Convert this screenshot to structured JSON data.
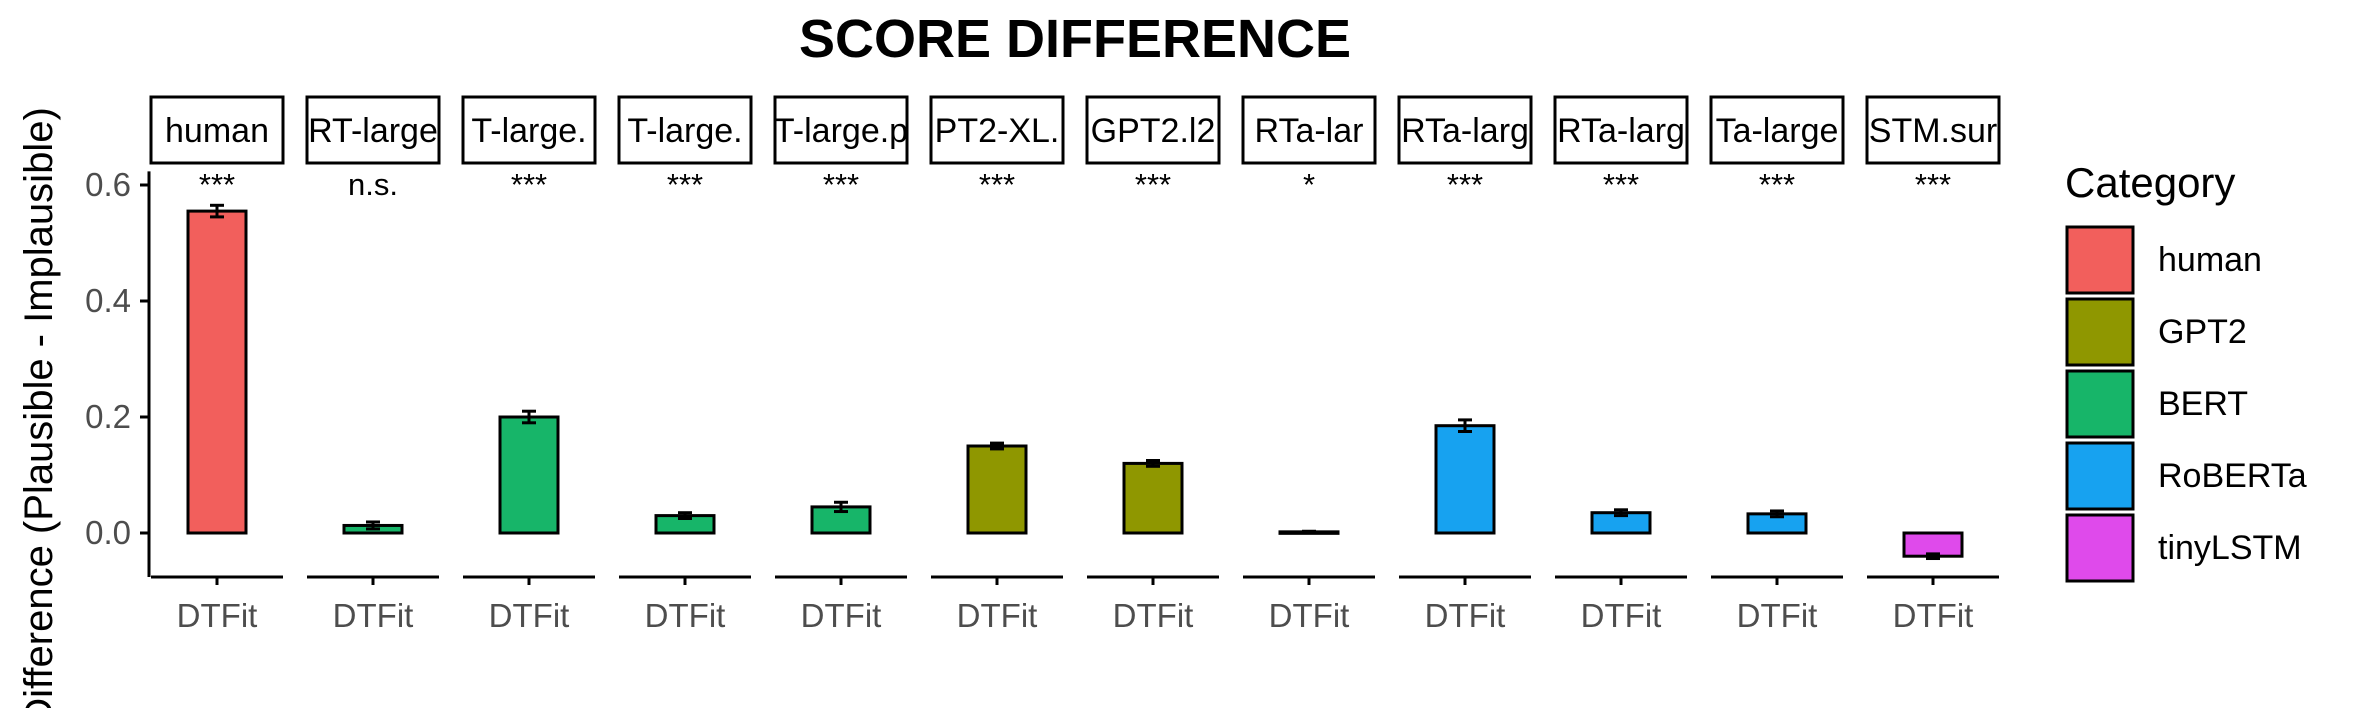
{
  "chart_data": {
    "type": "bar",
    "title": "SCORE DIFFERENCE",
    "ylabel": "Difference (Plausible - Implausible)",
    "xlabel": "",
    "ylim": [
      -0.07,
      0.62
    ],
    "y_ticks": [
      0.0,
      0.2,
      0.4,
      0.6
    ],
    "y_tick_labels": [
      "0.0",
      "0.2",
      "0.4",
      "0.6"
    ],
    "grid": false,
    "facet_category": "DTFit",
    "facets": [
      {
        "strip": "human",
        "category": "human",
        "value": 0.555,
        "error": 0.01,
        "significance": "***"
      },
      {
        "strip": "RT-large",
        "category": "BERT",
        "value": 0.013,
        "error": 0.006,
        "significance": "n.s."
      },
      {
        "strip": "T-large.",
        "category": "BERT",
        "value": 0.2,
        "error": 0.01,
        "significance": "***"
      },
      {
        "strip": "T-large.",
        "category": "BERT",
        "value": 0.03,
        "error": 0.005,
        "significance": "***"
      },
      {
        "strip": "T-large.p",
        "category": "BERT",
        "value": 0.045,
        "error": 0.008,
        "significance": "***"
      },
      {
        "strip": "PT2-XL.",
        "category": "GPT2",
        "value": 0.15,
        "error": 0.005,
        "significance": "***"
      },
      {
        "strip": "GPT2.l2",
        "category": "GPT2",
        "value": 0.12,
        "error": 0.005,
        "significance": "***"
      },
      {
        "strip": "RTa-lar",
        "category": "RoBERTa",
        "value": 0.002,
        "error": 0.001,
        "significance": "*"
      },
      {
        "strip": "RTa-larg",
        "category": "RoBERTa",
        "value": 0.185,
        "error": 0.01,
        "significance": "***"
      },
      {
        "strip": "RTa-larg",
        "category": "RoBERTa",
        "value": 0.035,
        "error": 0.005,
        "significance": "***"
      },
      {
        "strip": "Ta-large",
        "category": "RoBERTa",
        "value": 0.033,
        "error": 0.005,
        "significance": "***"
      },
      {
        "strip": "STM.sur",
        "category": "tinyLSTM",
        "value": -0.04,
        "error": 0.004,
        "significance": "***"
      }
    ],
    "legend": {
      "title": "Category",
      "position": "right",
      "items": [
        {
          "label": "human",
          "color": "#F25F5C"
        },
        {
          "label": "GPT2",
          "color": "#8F9700"
        },
        {
          "label": "BERT",
          "color": "#17B569"
        },
        {
          "label": "RoBERTa",
          "color": "#17A2F0"
        },
        {
          "label": "tinyLSTM",
          "color": "#DF4AEB"
        }
      ]
    }
  }
}
